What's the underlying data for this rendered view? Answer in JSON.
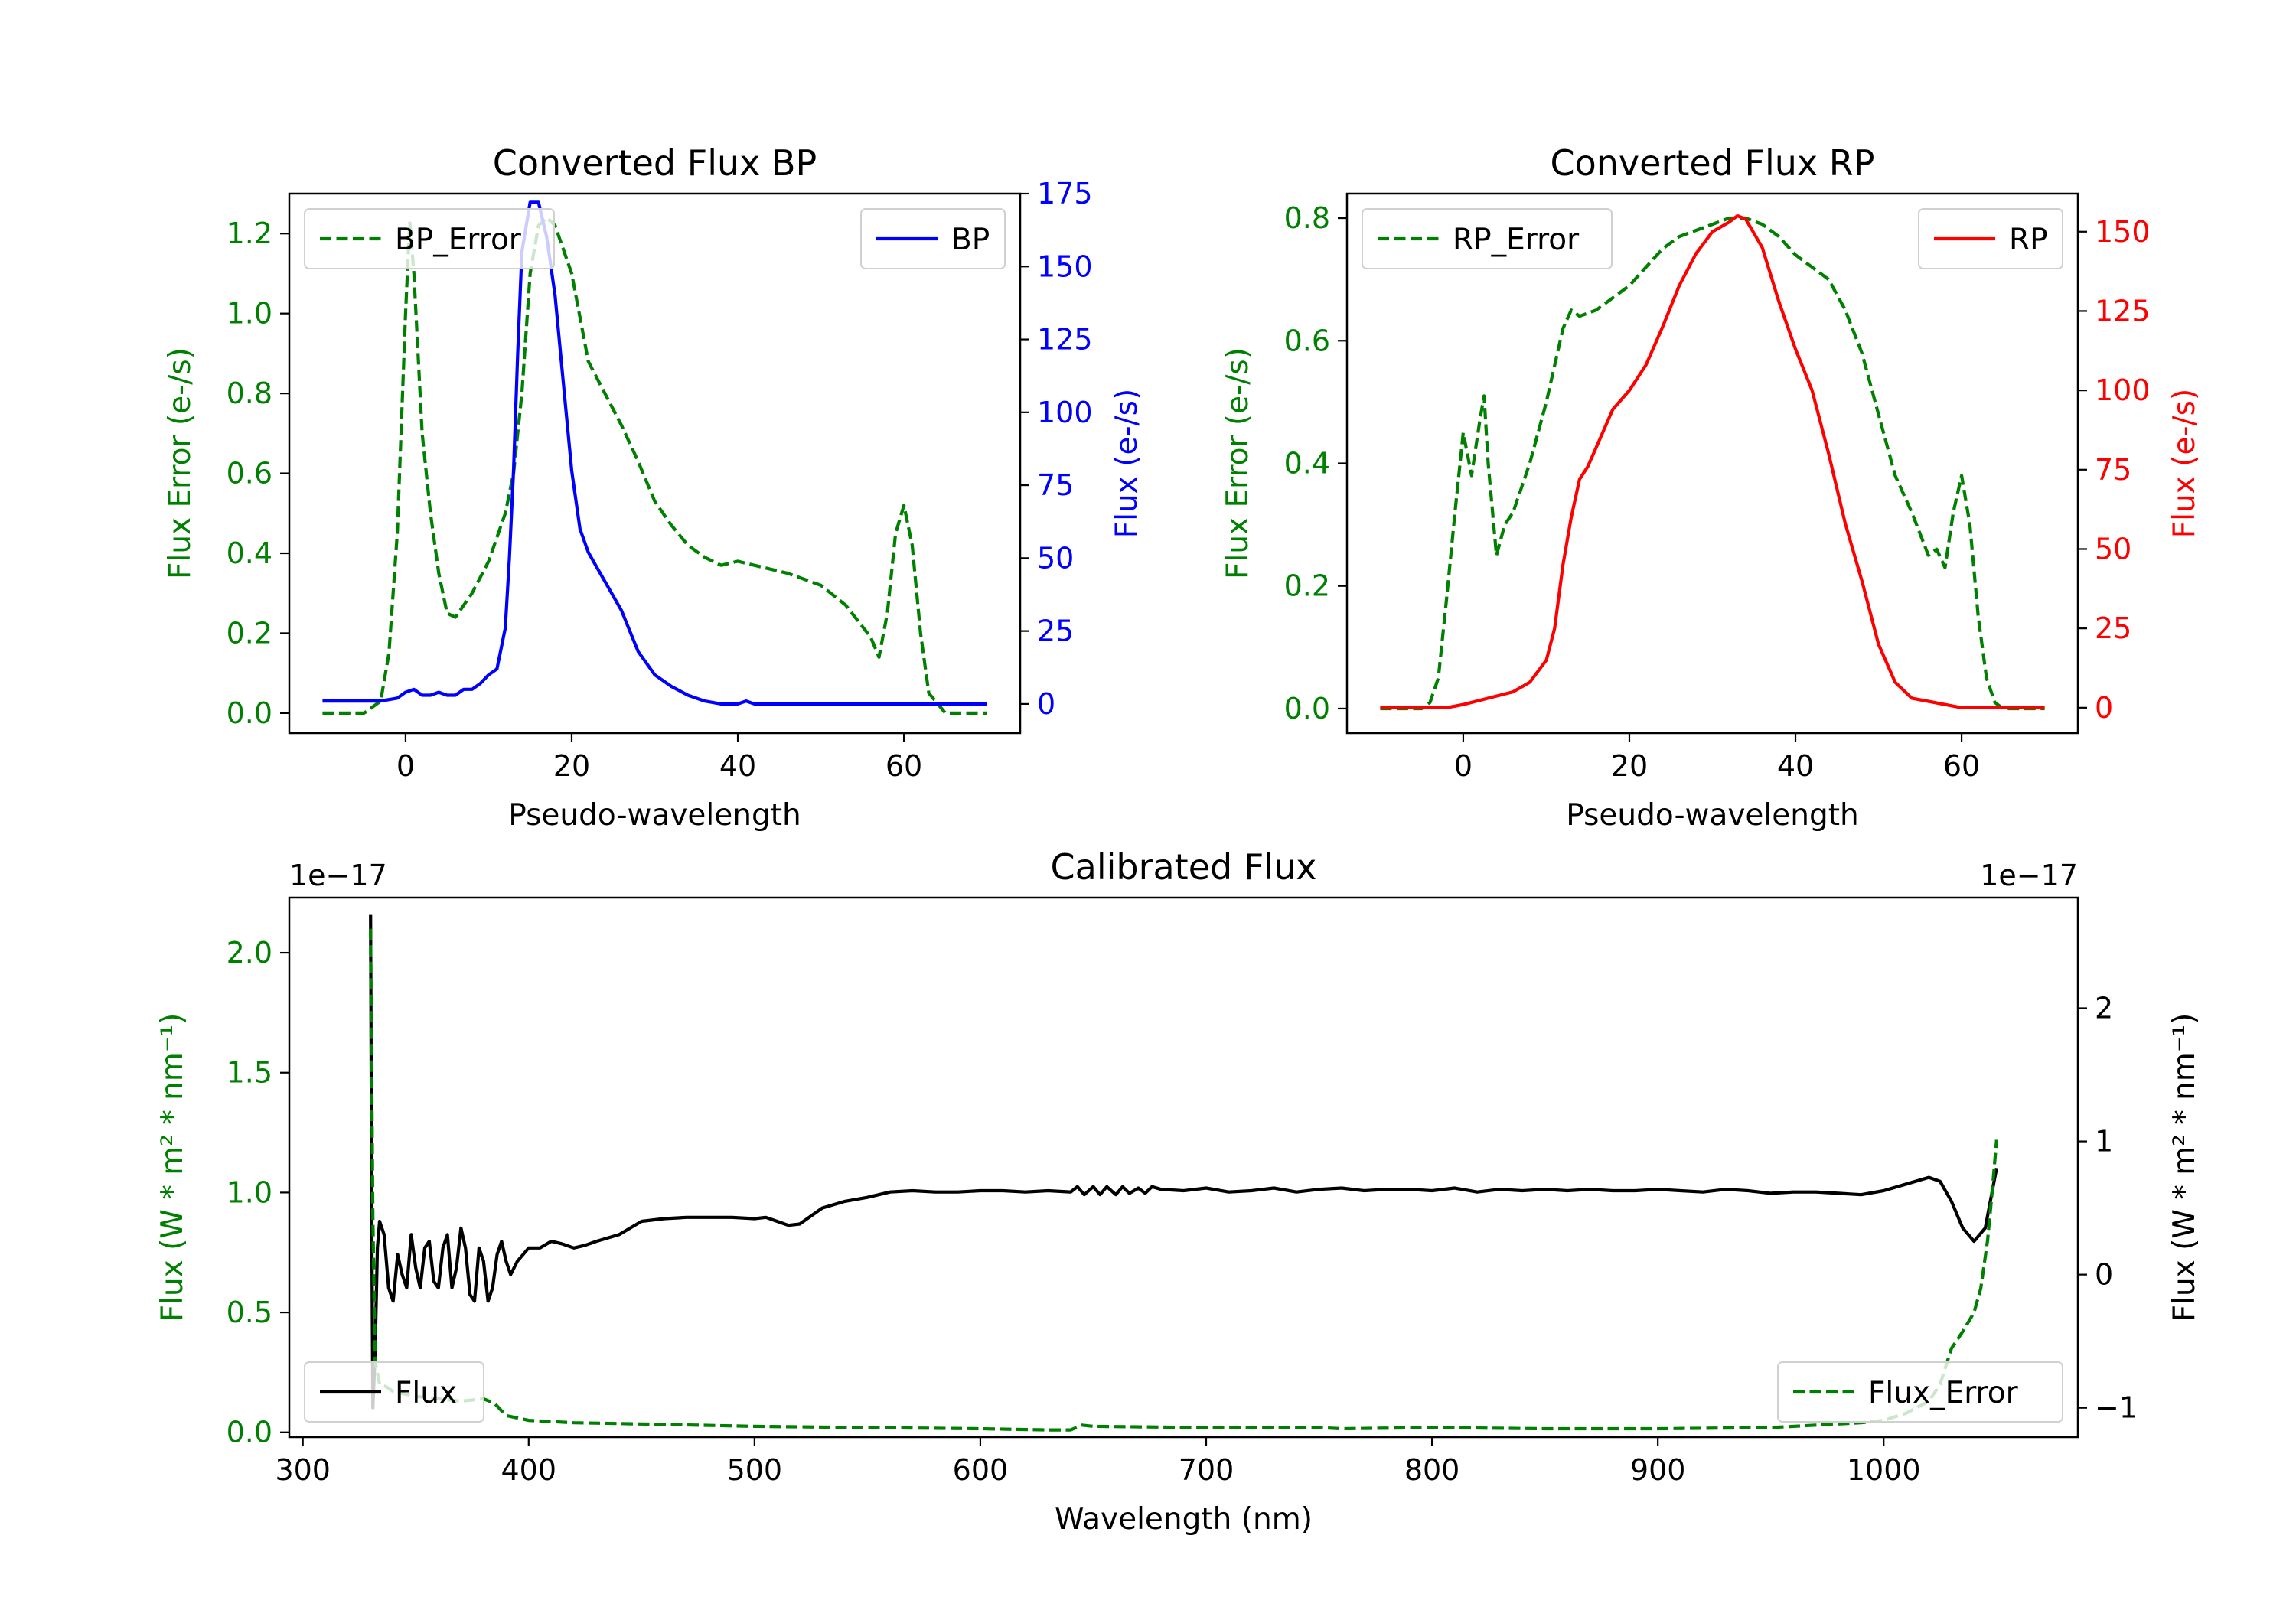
{
  "chart_data": [
    {
      "id": "bp",
      "type": "line",
      "title": "Converted Flux BP",
      "xlabel": "Pseudo-wavelength",
      "ylabel_left": "Flux Error (e-/s)",
      "ylabel_right": "Flux (e-/s)",
      "xlim": [
        -14,
        74
      ],
      "ylim_left": [
        -0.05,
        1.3
      ],
      "ylim_right": [
        -10,
        175
      ],
      "xticks": [
        "0",
        "20",
        "40",
        "60"
      ],
      "yticks_left": [
        "0.0",
        "0.2",
        "0.4",
        "0.6",
        "0.8",
        "1.0",
        "1.2"
      ],
      "yticks_right": [
        "0",
        "25",
        "50",
        "75",
        "100",
        "125",
        "150",
        "175"
      ],
      "left_color": "#008000",
      "right_color": "#0000ff",
      "series": [
        {
          "name": "BP_Error",
          "axis": "left",
          "style": "dashed",
          "color": "#008000",
          "x": [
            -10,
            -5,
            -3,
            -2,
            -1,
            0,
            0.5,
            1,
            2,
            3,
            4,
            5,
            6,
            8,
            10,
            12,
            13,
            14,
            15,
            16,
            17,
            18,
            20,
            22,
            24,
            26,
            28,
            30,
            32,
            34,
            36,
            38,
            40,
            42,
            46,
            50,
            53,
            56,
            57,
            58,
            59,
            60,
            61,
            62,
            63,
            65,
            70
          ],
          "y": [
            0.0,
            0.0,
            0.03,
            0.15,
            0.45,
            1.0,
            1.23,
            1.1,
            0.7,
            0.5,
            0.35,
            0.25,
            0.24,
            0.3,
            0.38,
            0.5,
            0.6,
            0.8,
            1.1,
            1.22,
            1.24,
            1.22,
            1.1,
            0.88,
            0.8,
            0.72,
            0.63,
            0.53,
            0.47,
            0.42,
            0.39,
            0.37,
            0.38,
            0.37,
            0.35,
            0.32,
            0.27,
            0.19,
            0.14,
            0.25,
            0.45,
            0.52,
            0.42,
            0.2,
            0.05,
            0.0,
            0.0
          ]
        },
        {
          "name": "BP",
          "axis": "right",
          "style": "solid",
          "color": "#0000ff",
          "x": [
            -10,
            -3,
            -1,
            0,
            1,
            2,
            3,
            4,
            5,
            6,
            7,
            8,
            9,
            10,
            11,
            12,
            12.5,
            13,
            13.5,
            14,
            15,
            16,
            17,
            18,
            19,
            20,
            21,
            22,
            23,
            24,
            26,
            28,
            30,
            32,
            34,
            36,
            38,
            40,
            41,
            42,
            44,
            46,
            50,
            55,
            60,
            70
          ],
          "y": [
            1,
            1,
            2,
            4,
            5,
            3,
            3,
            4,
            3,
            3,
            5,
            5,
            7,
            10,
            12,
            26,
            50,
            80,
            120,
            155,
            172,
            172,
            160,
            140,
            110,
            80,
            60,
            52,
            47,
            42,
            32,
            18,
            10,
            6,
            3,
            1,
            0,
            0,
            1,
            0,
            0,
            0,
            0,
            0,
            0,
            0
          ]
        }
      ],
      "legend": [
        {
          "label": "BP_Error",
          "loc": "upper-left"
        },
        {
          "label": "BP",
          "loc": "upper-right"
        }
      ]
    },
    {
      "id": "rp",
      "type": "line",
      "title": "Converted Flux RP",
      "xlabel": "Pseudo-wavelength",
      "ylabel_left": "Flux Error (e-/s)",
      "ylabel_right": "Flux (e-/s)",
      "xlim": [
        -14,
        74
      ],
      "ylim_left": [
        -0.04,
        0.84
      ],
      "ylim_right": [
        -8,
        162
      ],
      "xticks": [
        "0",
        "20",
        "40",
        "60"
      ],
      "yticks_left": [
        "0.0",
        "0.2",
        "0.4",
        "0.6",
        "0.8"
      ],
      "yticks_right": [
        "0",
        "25",
        "50",
        "75",
        "100",
        "125",
        "150"
      ],
      "left_color": "#008000",
      "right_color": "#ff0000",
      "series": [
        {
          "name": "RP_Error",
          "axis": "left",
          "style": "dashed",
          "color": "#008000",
          "x": [
            -10,
            -5,
            -4,
            -3,
            -2,
            -1,
            0,
            1,
            2,
            2.5,
            3,
            4,
            5,
            6,
            8,
            10,
            12,
            13,
            14,
            16,
            18,
            20,
            22,
            24,
            26,
            28,
            30,
            32,
            33,
            34,
            36,
            38,
            40,
            42,
            44,
            46,
            48,
            50,
            52,
            54,
            56,
            57,
            58,
            59,
            60,
            61,
            62,
            63,
            64,
            65,
            70
          ],
          "y": [
            0.0,
            0.0,
            0.01,
            0.05,
            0.18,
            0.32,
            0.45,
            0.38,
            0.47,
            0.51,
            0.4,
            0.25,
            0.3,
            0.32,
            0.4,
            0.5,
            0.62,
            0.65,
            0.64,
            0.65,
            0.67,
            0.69,
            0.72,
            0.75,
            0.77,
            0.78,
            0.79,
            0.8,
            0.8,
            0.8,
            0.79,
            0.77,
            0.74,
            0.72,
            0.7,
            0.65,
            0.58,
            0.48,
            0.38,
            0.32,
            0.25,
            0.26,
            0.23,
            0.32,
            0.38,
            0.3,
            0.15,
            0.05,
            0.01,
            0.0,
            0.0
          ]
        },
        {
          "name": "RP",
          "axis": "right",
          "style": "solid",
          "color": "#ff0000",
          "x": [
            -10,
            -2,
            0,
            3,
            6,
            8,
            10,
            11,
            12,
            13,
            14,
            15,
            16,
            18,
            20,
            22,
            24,
            26,
            28,
            30,
            32,
            33,
            34,
            36,
            38,
            40,
            42,
            44,
            46,
            48,
            50,
            52,
            54,
            56,
            58,
            60,
            62,
            64,
            66,
            70
          ],
          "y": [
            0,
            0,
            1,
            3,
            5,
            8,
            15,
            25,
            45,
            60,
            72,
            76,
            82,
            94,
            100,
            108,
            120,
            133,
            143,
            150,
            153,
            155,
            154,
            145,
            128,
            113,
            100,
            80,
            58,
            40,
            20,
            8,
            3,
            2,
            1,
            0,
            0,
            0,
            0,
            0
          ]
        }
      ],
      "legend": [
        {
          "label": "RP_Error",
          "loc": "upper-left"
        },
        {
          "label": "RP",
          "loc": "upper-right"
        }
      ]
    },
    {
      "id": "cal",
      "type": "line",
      "title": "Calibrated Flux",
      "xlabel": "Wavelength (nm)",
      "ylabel_left": "Flux (W * m² * nm⁻¹)",
      "ylabel_right": "Flux (W * m² * nm⁻¹)",
      "offset_left": "1e−17",
      "offset_right": "1e−17",
      "xlim": [
        294,
        1086
      ],
      "ylim_left": [
        -0.02,
        2.23
      ],
      "ylim_right": [
        -1.22,
        2.83
      ],
      "xticks": [
        "300",
        "400",
        "500",
        "600",
        "700",
        "800",
        "900",
        "1000"
      ],
      "yticks_left": [
        "0.0",
        "0.5",
        "1.0",
        "1.5",
        "2.0"
      ],
      "yticks_right": [
        "−1",
        "0",
        "1",
        "2"
      ],
      "left_color": "#008000",
      "right_color": "#000000",
      "series": [
        {
          "name": "Flux",
          "axis": "right",
          "style": "solid",
          "color": "#000000",
          "x": [
            330,
            330.5,
            331,
            332,
            333,
            334,
            336,
            338,
            340,
            342,
            344,
            346,
            348,
            350,
            352,
            354,
            356,
            358,
            360,
            362,
            364,
            366,
            368,
            370,
            372,
            374,
            376,
            378,
            380,
            382,
            384,
            386,
            388,
            390,
            392,
            395,
            400,
            405,
            410,
            415,
            420,
            425,
            430,
            440,
            450,
            460,
            470,
            480,
            490,
            500,
            505,
            510,
            515,
            520,
            530,
            540,
            550,
            560,
            570,
            580,
            590,
            600,
            610,
            620,
            630,
            640,
            643,
            646,
            650,
            653,
            656,
            660,
            663,
            666,
            670,
            673,
            676,
            680,
            690,
            700,
            710,
            720,
            730,
            740,
            750,
            760,
            770,
            780,
            790,
            800,
            810,
            820,
            830,
            840,
            850,
            860,
            870,
            880,
            890,
            900,
            910,
            920,
            930,
            940,
            950,
            960,
            970,
            980,
            990,
            1000,
            1010,
            1020,
            1025,
            1030,
            1035,
            1040,
            1045,
            1050
          ],
          "y": [
            2.7,
            0.5,
            -1.0,
            -0.6,
            0.2,
            0.4,
            0.3,
            -0.1,
            -0.2,
            0.15,
            0.0,
            -0.1,
            0.3,
            0.05,
            -0.1,
            0.2,
            0.25,
            -0.05,
            -0.1,
            0.2,
            0.3,
            -0.1,
            0.05,
            0.35,
            0.2,
            -0.15,
            -0.2,
            0.2,
            0.1,
            -0.2,
            -0.1,
            0.15,
            0.25,
            0.1,
            0.0,
            0.1,
            0.2,
            0.2,
            0.25,
            0.23,
            0.2,
            0.22,
            0.25,
            0.3,
            0.4,
            0.42,
            0.43,
            0.43,
            0.43,
            0.42,
            0.43,
            0.4,
            0.37,
            0.38,
            0.5,
            0.55,
            0.58,
            0.62,
            0.63,
            0.62,
            0.62,
            0.63,
            0.63,
            0.62,
            0.63,
            0.62,
            0.66,
            0.6,
            0.66,
            0.6,
            0.66,
            0.6,
            0.66,
            0.61,
            0.65,
            0.61,
            0.66,
            0.64,
            0.63,
            0.65,
            0.62,
            0.63,
            0.65,
            0.62,
            0.64,
            0.65,
            0.63,
            0.64,
            0.64,
            0.63,
            0.65,
            0.62,
            0.64,
            0.63,
            0.64,
            0.63,
            0.64,
            0.63,
            0.63,
            0.64,
            0.63,
            0.62,
            0.64,
            0.63,
            0.61,
            0.62,
            0.62,
            0.61,
            0.6,
            0.63,
            0.68,
            0.73,
            0.7,
            0.55,
            0.35,
            0.25,
            0.35,
            0.8
          ]
        },
        {
          "name": "Flux_Error",
          "axis": "left",
          "style": "dashed",
          "color": "#008000",
          "x": [
            330,
            331,
            332,
            334,
            337,
            340,
            345,
            350,
            360,
            370,
            380,
            385,
            390,
            395,
            400,
            420,
            450,
            500,
            550,
            600,
            630,
            640,
            645,
            650,
            700,
            750,
            760,
            800,
            850,
            900,
            950,
            970,
            990,
            1000,
            1010,
            1020,
            1025,
            1030,
            1035,
            1040,
            1043,
            1046,
            1048,
            1050
          ],
          "y": [
            2.1,
            0.9,
            0.3,
            0.2,
            0.19,
            0.17,
            0.16,
            0.15,
            0.14,
            0.13,
            0.14,
            0.12,
            0.07,
            0.06,
            0.05,
            0.04,
            0.035,
            0.025,
            0.02,
            0.015,
            0.01,
            0.01,
            0.03,
            0.025,
            0.02,
            0.02,
            0.015,
            0.02,
            0.015,
            0.015,
            0.02,
            0.03,
            0.04,
            0.05,
            0.08,
            0.13,
            0.2,
            0.35,
            0.42,
            0.5,
            0.6,
            0.8,
            1.0,
            1.22
          ]
        }
      ],
      "legend": [
        {
          "label": "Flux",
          "loc": "lower-left"
        },
        {
          "label": "Flux_Error",
          "loc": "lower-right"
        }
      ]
    }
  ]
}
